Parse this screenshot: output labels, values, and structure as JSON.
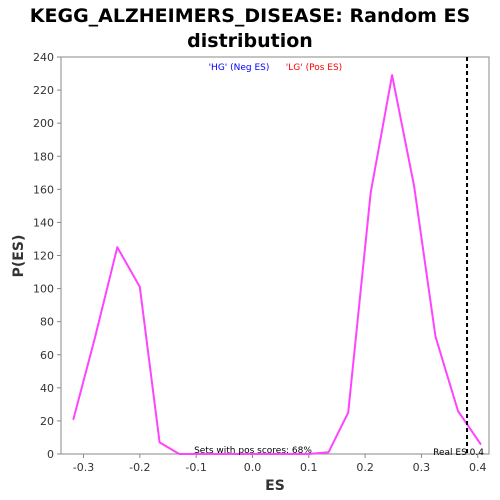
{
  "chart_data": {
    "type": "line",
    "title_line1": "KEGG_ALZHEIMERS_DISEASE: Random ES",
    "title_line2": "distribution",
    "xlabel": "ES",
    "ylabel": "P(ES)",
    "xlim": [
      -0.34,
      0.42
    ],
    "ylim": [
      0,
      240
    ],
    "xticks": [
      -0.3,
      -0.2,
      -0.1,
      0.0,
      0.1,
      0.2,
      0.3,
      0.4
    ],
    "xtick_labels": [
      "-0.3",
      "-0.2",
      "-0.1",
      "0.0",
      "0.1",
      "0.2",
      "0.3",
      "0.4"
    ],
    "yticks": [
      0,
      20,
      40,
      60,
      80,
      100,
      120,
      140,
      160,
      180,
      200,
      220,
      240
    ],
    "ytick_labels": [
      "0",
      "20",
      "40",
      "60",
      "80",
      "100",
      "120",
      "140",
      "160",
      "180",
      "200",
      "220",
      "240"
    ],
    "grid": false,
    "legend_position": "top-center",
    "legend": [
      {
        "label": "'HG' (Neg ES)",
        "color": "#0000ff"
      },
      {
        "label": "'LG' (Pos ES)",
        "color": "#ff0000"
      }
    ],
    "series": [
      {
        "color": "#ff44ff",
        "x": [
          -0.318,
          -0.28,
          -0.24,
          -0.2,
          -0.165,
          -0.13,
          -0.09,
          -0.05,
          0.0,
          0.05,
          0.1,
          0.135,
          0.17,
          0.21,
          0.248,
          0.287,
          0.325,
          0.365,
          0.405
        ],
        "y": [
          21,
          70,
          125,
          101,
          7,
          0,
          0,
          0,
          0,
          0,
          0,
          1,
          25,
          158,
          229,
          162,
          71,
          26,
          6
        ]
      }
    ],
    "real_es": 0.381,
    "real_es_label": "Real ES 0.4",
    "pos_scores_label": "Sets with pos scores: 68%"
  }
}
